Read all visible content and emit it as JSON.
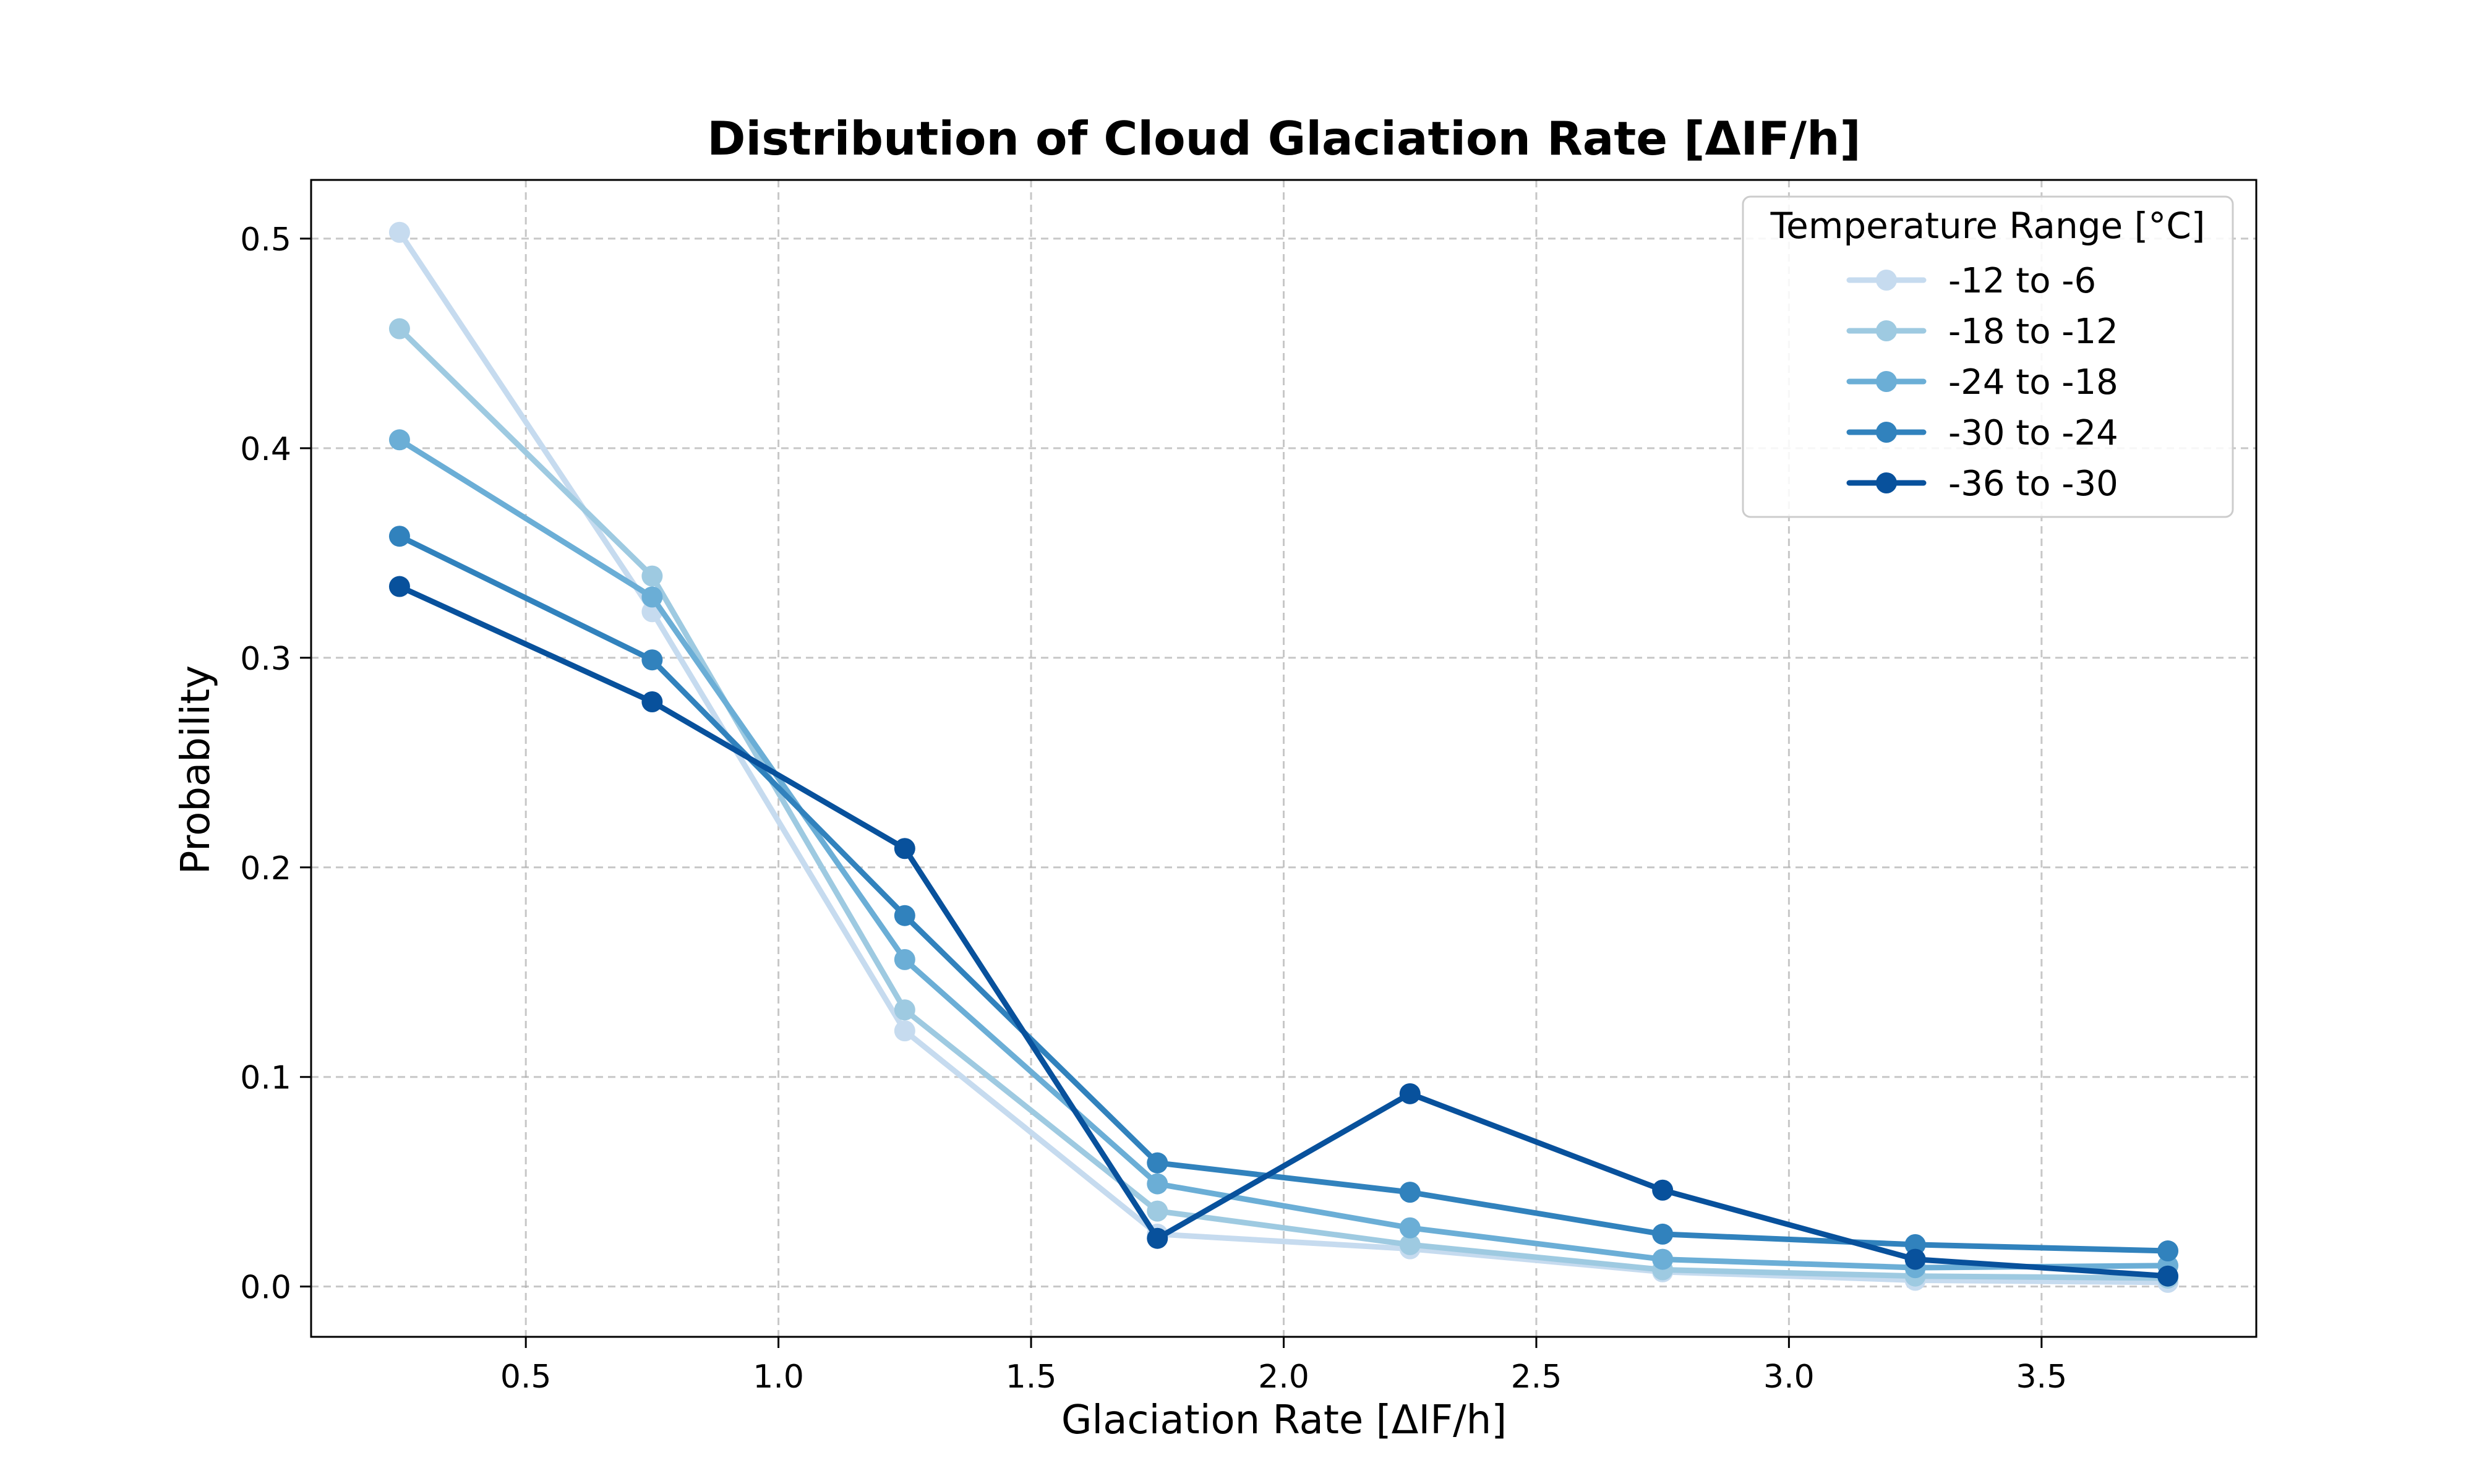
{
  "chart_data": {
    "type": "line",
    "title": "Distribution of Cloud Glaciation Rate [ΔIF/h]",
    "xlabel": "Glaciation Rate [ΔIF/h]",
    "ylabel": "Probability",
    "x": [
      0.25,
      0.75,
      1.25,
      1.75,
      2.25,
      2.75,
      3.25,
      3.75
    ],
    "xlim": [
      0.075,
      3.925
    ],
    "ylim": [
      -0.024,
      0.528
    ],
    "xticks": [
      "0.5",
      "1.0",
      "1.5",
      "2.0",
      "2.5",
      "3.0",
      "3.5"
    ],
    "xtick_values": [
      0.5,
      1.0,
      1.5,
      2.0,
      2.5,
      3.0,
      3.5
    ],
    "yticks": [
      "0.0",
      "0.1",
      "0.2",
      "0.3",
      "0.4",
      "0.5"
    ],
    "ytick_values": [
      0.0,
      0.1,
      0.2,
      0.3,
      0.4,
      0.5
    ],
    "grid": true,
    "legend": {
      "title": "Temperature Range [°C]",
      "placement": "top-right"
    },
    "series": [
      {
        "name": "-12 to -6",
        "color": "#c6dbef",
        "values": [
          0.503,
          0.322,
          0.122,
          0.025,
          0.018,
          0.007,
          0.003,
          0.002
        ]
      },
      {
        "name": "-18 to -12",
        "color": "#9ecae1",
        "values": [
          0.457,
          0.339,
          0.132,
          0.036,
          0.02,
          0.008,
          0.005,
          0.004
        ]
      },
      {
        "name": "-24 to -18",
        "color": "#6baed6",
        "values": [
          0.404,
          0.329,
          0.156,
          0.049,
          0.028,
          0.013,
          0.009,
          0.01
        ]
      },
      {
        "name": "-30 to -24",
        "color": "#3182bd",
        "values": [
          0.358,
          0.299,
          0.177,
          0.059,
          0.045,
          0.025,
          0.02,
          0.017
        ]
      },
      {
        "name": "-36 to -30",
        "color": "#08519c",
        "values": [
          0.334,
          0.279,
          0.209,
          0.023,
          0.092,
          0.046,
          0.013,
          0.005
        ]
      }
    ]
  }
}
